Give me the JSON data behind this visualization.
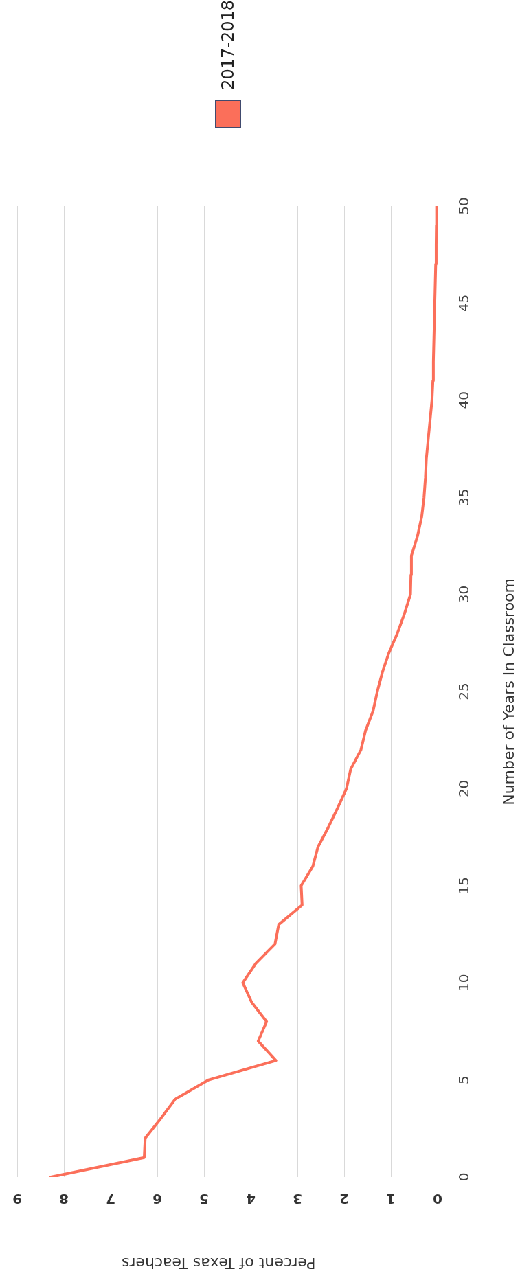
{
  "chart_data": {
    "type": "line",
    "xlabel": "Percent of Texas Teachers",
    "ylabel": "Number of Years In Classroom",
    "x": [
      8.28,
      6.28,
      6.26,
      5.93,
      5.62,
      4.9,
      3.46,
      3.84,
      3.66,
      3.98,
      4.17,
      3.89,
      3.48,
      3.4,
      2.9,
      2.92,
      2.67,
      2.56,
      2.34,
      2.14,
      1.95,
      1.86,
      1.64,
      1.54,
      1.38,
      1.29,
      1.18,
      1.04,
      0.86,
      0.71,
      0.58,
      0.57,
      0.56,
      0.43,
      0.34,
      0.29,
      0.26,
      0.24,
      0.2,
      0.16,
      0.12,
      0.1,
      0.09,
      0.08,
      0.07,
      0.06,
      0.05,
      0.04,
      0.03,
      0.025,
      0.02
    ],
    "series": [
      {
        "name": "2017-2018",
        "color": "#fb6f5a",
        "values": [
          0,
          1,
          2,
          3,
          4,
          5,
          6,
          7,
          8,
          9,
          10,
          11,
          12,
          13,
          14,
          15,
          16,
          17,
          18,
          19,
          20,
          21,
          22,
          23,
          24,
          25,
          26,
          27,
          28,
          29,
          30,
          31,
          32,
          33,
          34,
          35,
          36,
          37,
          38,
          39,
          40,
          41,
          42,
          43,
          44,
          45,
          46,
          47,
          48,
          49,
          50
        ]
      }
    ],
    "xlim": [
      9,
      0
    ],
    "xticks": [
      9,
      8,
      7,
      6,
      5,
      4,
      3,
      2,
      1,
      0
    ],
    "ylim": [
      0,
      50
    ],
    "yticks": [
      0,
      5,
      10,
      15,
      20,
      25,
      30,
      35,
      40,
      45,
      50
    ],
    "grid": "x",
    "legend": "top right",
    "marker": "none",
    "line_style": "solid"
  }
}
